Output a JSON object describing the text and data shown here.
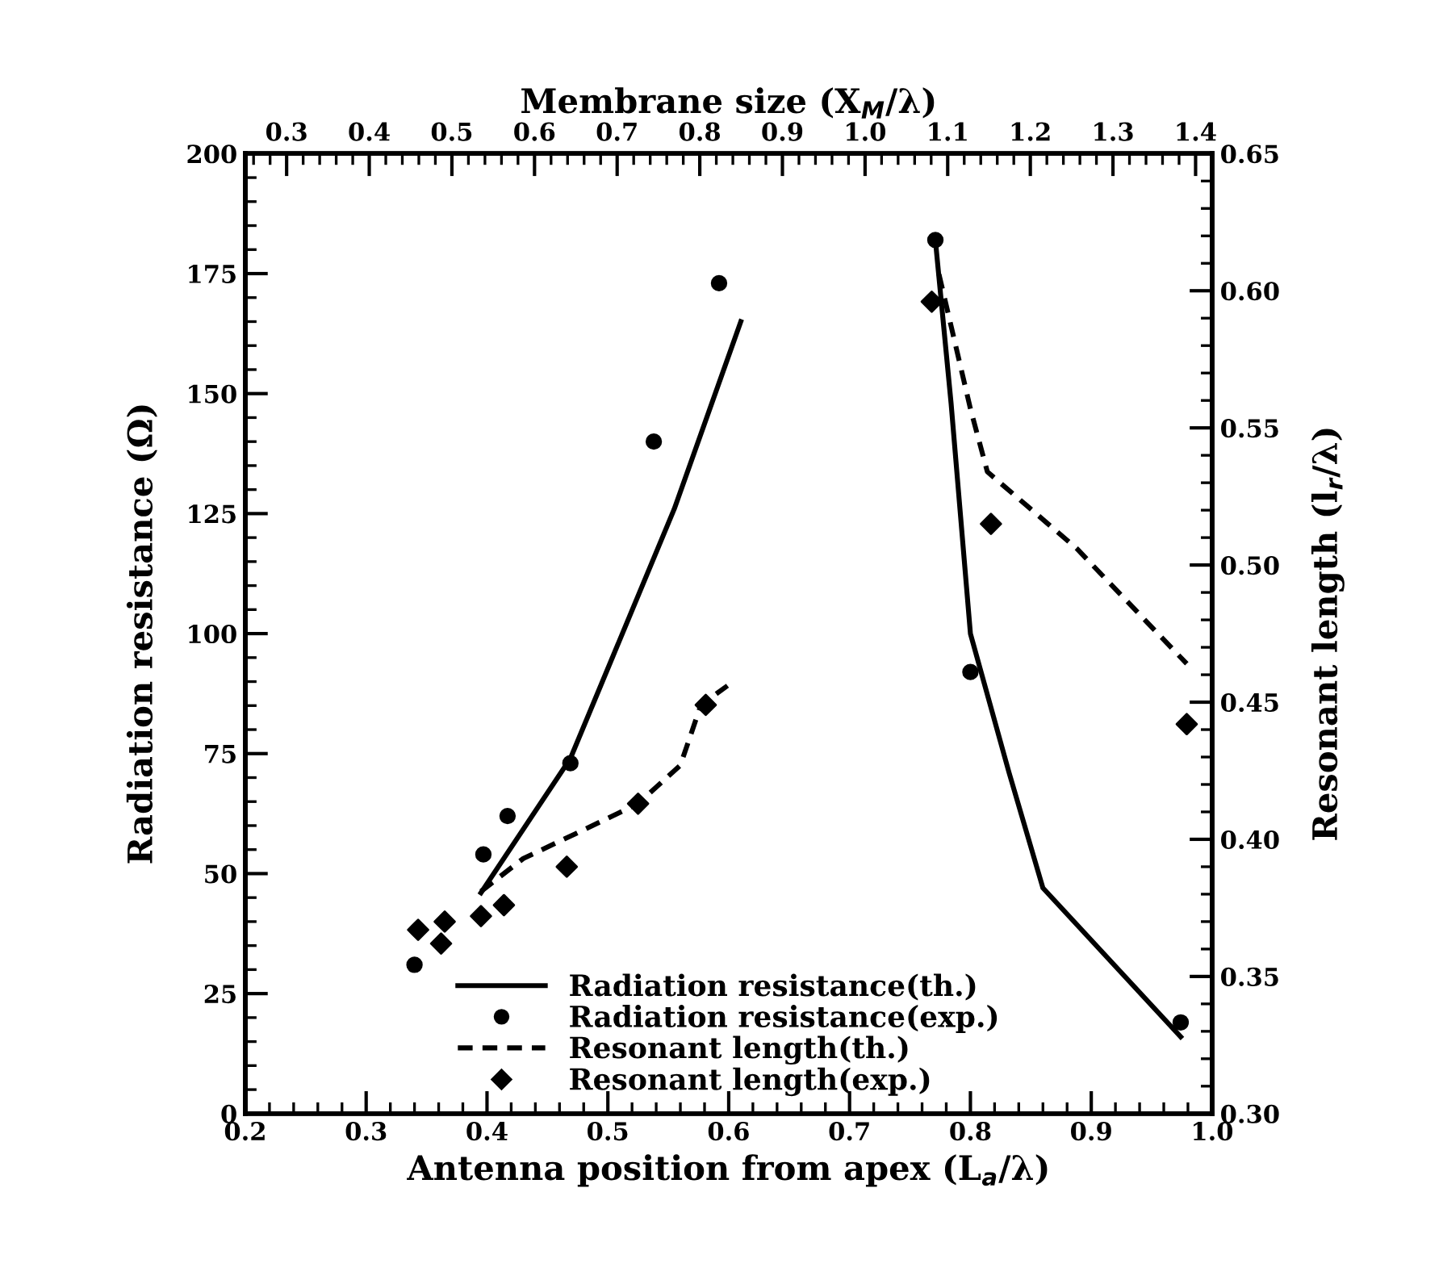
{
  "chart_data": {
    "type": "line",
    "xlabel": "Antenna position from apex (L$_{a}$/λ)",
    "ylabel": "Radiation resistance (Ω)",
    "y2label": "Resonant length (l$_{r}$/λ)",
    "x2label": "Membrane size (X$_{M}$/λ)",
    "xlim": [
      0.2,
      1.0
    ],
    "xticks": [
      0.2,
      0.3,
      0.4,
      0.5,
      0.6,
      0.7,
      0.8,
      0.9,
      {
        "value": 1.0,
        "label": "1.0"
      }
    ],
    "ylim": [
      0,
      200
    ],
    "yticks": [
      0,
      25,
      50,
      75,
      100,
      125,
      150,
      175,
      200
    ],
    "y2lim": [
      0.3,
      0.65
    ],
    "y2ticks": [
      {
        "value": 0.3,
        "label": "0.30"
      },
      0.35,
      {
        "value": 0.4,
        "label": "0.40"
      },
      0.45,
      {
        "value": 0.5,
        "label": "0.50"
      },
      0.55,
      {
        "value": 0.6,
        "label": "0.60"
      },
      0.65
    ],
    "x2lim": [
      0.25,
      1.42
    ],
    "x2ticks": [
      0.3,
      0.4,
      0.5,
      0.6,
      0.7,
      0.8,
      0.9,
      {
        "value": 1.0,
        "label": "1.0"
      },
      1.1,
      1.2,
      1.3,
      1.4
    ],
    "grid": false,
    "legend": "bottom",
    "series": [
      {
        "name": "Radiation resistance(th.)",
        "line_style": "solid",
        "marker": "none",
        "color": "#000000",
        "x": [
          0.395,
          0.469,
          0.555,
          0.61,
          null,
          0.771,
          0.784,
          0.8,
          0.832,
          0.86,
          0.974
        ],
        "values": [
          46,
          74,
          126,
          165,
          null,
          182,
          148,
          100,
          71,
          47,
          16
        ]
      },
      {
        "name": "Radiation resistance(exp.)",
        "type": "scatter",
        "marker": "circle",
        "color": "#000000",
        "x": [
          0.34,
          0.397,
          0.417,
          0.469,
          0.538,
          0.592,
          0.771,
          0.8,
          0.974
        ],
        "values": [
          31,
          54,
          62,
          73,
          140,
          173,
          182,
          92,
          19
        ]
      },
      {
        "name": "Resonant length(th.)",
        "axis": "y2",
        "line_style": "dashed",
        "marker": "none",
        "color": "#000000",
        "x": [
          0.395,
          0.43,
          0.473,
          0.525,
          0.56,
          0.577,
          0.599,
          null,
          0.774,
          0.8,
          0.814,
          0.888,
          0.979
        ],
        "values": [
          0.381,
          0.393,
          0.402,
          0.413,
          0.427,
          0.449,
          0.456,
          null,
          0.606,
          0.557,
          0.534,
          0.506,
          0.464
        ]
      },
      {
        "name": "Resonant length(exp.)",
        "type": "scatter",
        "axis": "y2",
        "marker": "diamond",
        "color": "#000000",
        "x": [
          0.343,
          0.365,
          0.362,
          0.395,
          0.414,
          0.466,
          0.525,
          0.581,
          0.768,
          0.817,
          0.979
        ],
        "values": [
          0.367,
          0.37,
          0.362,
          0.372,
          0.376,
          0.39,
          0.413,
          0.449,
          0.596,
          0.515,
          0.442
        ]
      }
    ]
  }
}
